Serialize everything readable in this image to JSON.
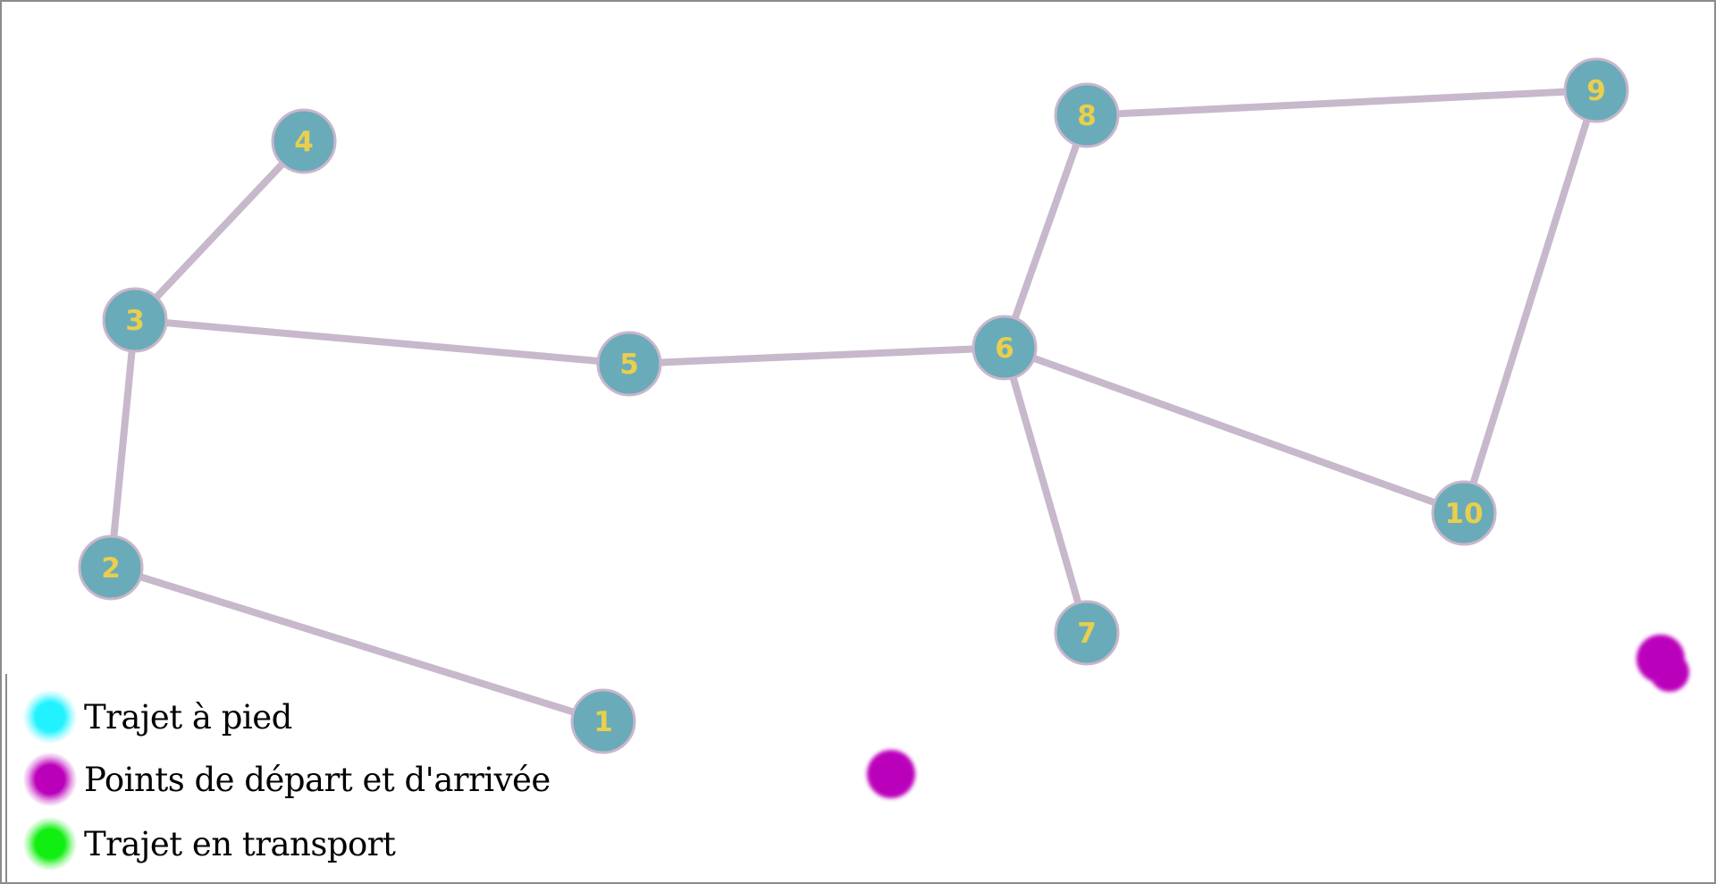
{
  "graph": {
    "colors": {
      "node_fill": "#6aabb9",
      "node_border": "#c9b6cc",
      "node_label": "#e8cf4d",
      "edge": "#c7b8cb",
      "marker": "#bb00bb"
    },
    "nodes": [
      {
        "id": "1",
        "label": "1"
      },
      {
        "id": "2",
        "label": "2"
      },
      {
        "id": "3",
        "label": "3"
      },
      {
        "id": "4",
        "label": "4"
      },
      {
        "id": "5",
        "label": "5"
      },
      {
        "id": "6",
        "label": "6"
      },
      {
        "id": "7",
        "label": "7"
      },
      {
        "id": "8",
        "label": "8"
      },
      {
        "id": "9",
        "label": "9"
      },
      {
        "id": "10",
        "label": "10"
      }
    ],
    "edges": [
      {
        "from": "1",
        "to": "2"
      },
      {
        "from": "2",
        "to": "3"
      },
      {
        "from": "3",
        "to": "4"
      },
      {
        "from": "3",
        "to": "5"
      },
      {
        "from": "5",
        "to": "6"
      },
      {
        "from": "6",
        "to": "7"
      },
      {
        "from": "6",
        "to": "8"
      },
      {
        "from": "6",
        "to": "10"
      },
      {
        "from": "8",
        "to": "9"
      },
      {
        "from": "9",
        "to": "10"
      }
    ]
  },
  "legend": {
    "items": [
      {
        "label": "Trajet à pied",
        "color": "#22f2ff"
      },
      {
        "label": "Points de départ et d'arrivée",
        "color": "#bb00bb"
      },
      {
        "label": "Trajet en transport",
        "color": "#11ee11"
      }
    ]
  }
}
